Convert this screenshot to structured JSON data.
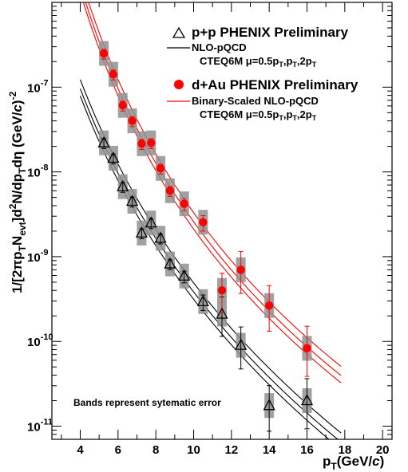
{
  "chart_data": {
    "type": "scatter",
    "xlabel": "p",
    "xlabel_sub": "T",
    "xlabel_unit": "(GeV/",
    "xlabel_c": "c",
    "xlabel_close": ")",
    "ylabel_parts": {
      "a": "1/[2πp",
      "a_sub": "T",
      "b": "N",
      "b_sub": "evt",
      "c": "]d",
      "c_sup": "2",
      "d": "N/dp",
      "d_sub": "T",
      "e": "dη (GeV/",
      "e_c": "c",
      "f": ")",
      "f_sup": "-2"
    },
    "xlim": [
      2.5,
      20.5
    ],
    "ylim": [
      7e-12,
      1e-06
    ],
    "yscale": "log",
    "x_ticks": [
      4,
      6,
      8,
      10,
      12,
      14,
      16,
      18,
      20
    ],
    "y_ticks": [
      {
        "value": 1e-11,
        "base": "10",
        "exp": "-11"
      },
      {
        "value": 1e-10,
        "base": "10",
        "exp": "-10"
      },
      {
        "value": 1e-09,
        "base": "10",
        "exp": "-9"
      },
      {
        "value": 1e-08,
        "base": "10",
        "exp": "-8"
      },
      {
        "value": 1e-07,
        "base": "10",
        "exp": "-7"
      }
    ],
    "legend": {
      "placement": "top-right",
      "pp_title": "p+p PHENIX Preliminary",
      "pp_curve": "NLO-pQCD",
      "pp_cteq": "CTEQ6M μ=0.5p",
      "dau_title": "d+Au PHENIX Preliminary",
      "dau_curve": "Binary-Scaled NLO-pQCD",
      "dau_cteq": "CTEQ6M μ=0.5p",
      "cteq_sub": "T",
      "cteq_mid1": ",p",
      "cteq_mid2": ",2p"
    },
    "annotation": "Bands represent sytematic error",
    "series": [
      {
        "name": "p+p PHENIX Preliminary",
        "marker": "open-triangle",
        "color": "#000000",
        "x": [
          5.25,
          5.75,
          6.25,
          6.75,
          7.25,
          7.75,
          8.25,
          8.75,
          9.5,
          10.5,
          11.5,
          12.5,
          14.0,
          16.0
        ],
        "y": [
          2.2e-08,
          1.45e-08,
          6.7e-09,
          4.5e-09,
          1.9e-09,
          2.5e-09,
          1.65e-09,
          8.2e-10,
          5.9e-10,
          2.95e-10,
          2.1e-10,
          9e-11,
          1.75e-11,
          2e-11
        ]
      },
      {
        "name": "d+Au PHENIX Preliminary",
        "marker": "filled-circle",
        "color": "#ff0000",
        "x": [
          5.25,
          5.75,
          6.25,
          6.75,
          7.25,
          7.75,
          8.25,
          8.75,
          9.5,
          10.5,
          11.5,
          12.5,
          14.0,
          16.0
        ],
        "y": [
          2.5e-07,
          1.42e-07,
          6.1e-08,
          4e-08,
          2.15e-08,
          2.2e-08,
          1.1e-08,
          6e-09,
          4.2e-09,
          2.55e-09,
          4e-10,
          7e-10,
          2.65e-10,
          8.3e-11
        ]
      }
    ]
  },
  "colors": {
    "pp": "#000000",
    "dau": "#ff0000",
    "band": "#909090"
  }
}
